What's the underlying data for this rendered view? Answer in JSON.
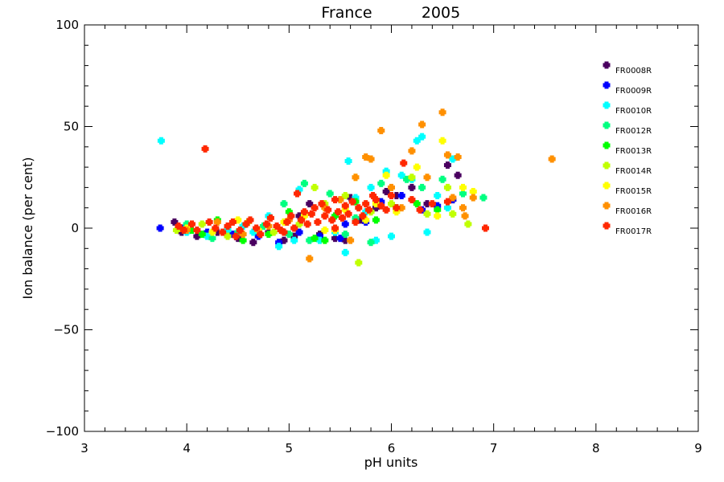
{
  "chart_data": {
    "type": "scatter",
    "title_left": "France",
    "title_right": "2005",
    "xlabel": "pH units",
    "ylabel": "Ion balance (per cent)",
    "xlim": [
      3,
      9
    ],
    "ylim": [
      -100,
      100
    ],
    "xticks": [
      3,
      4,
      5,
      6,
      7,
      8,
      9
    ],
    "yticks": [
      -100,
      -50,
      0,
      50,
      100
    ],
    "xtick_labels": [
      "3",
      "4",
      "5",
      "6",
      "7",
      "8",
      "9"
    ],
    "ytick_labels": [
      "−100",
      "−50",
      "0",
      "50",
      "100"
    ],
    "legend_placement": "top-right",
    "series": [
      {
        "name": "FR0008R",
        "color": "#4a0060",
        "points": [
          [
            3.88,
            3
          ],
          [
            3.95,
            -2
          ],
          [
            4.1,
            -4
          ],
          [
            4.3,
            -2
          ],
          [
            4.5,
            -5
          ],
          [
            4.65,
            -7
          ],
          [
            4.8,
            -2
          ],
          [
            4.95,
            -6
          ],
          [
            5.05,
            -4
          ],
          [
            5.2,
            12
          ],
          [
            5.3,
            -3
          ],
          [
            5.45,
            -5
          ],
          [
            5.55,
            -6
          ],
          [
            5.7,
            4
          ],
          [
            5.85,
            10
          ],
          [
            5.95,
            18
          ],
          [
            6.05,
            16
          ],
          [
            6.2,
            20
          ],
          [
            6.35,
            12
          ],
          [
            6.55,
            31
          ],
          [
            6.65,
            26
          ],
          [
            6.6,
            14
          ],
          [
            5.6,
            15
          ],
          [
            5.1,
            6
          ]
        ]
      },
      {
        "name": "FR0009R",
        "color": "#0000ff",
        "points": [
          [
            3.74,
            0
          ],
          [
            3.95,
            0
          ],
          [
            4.2,
            -2
          ],
          [
            4.45,
            -3
          ],
          [
            4.7,
            -4
          ],
          [
            4.9,
            -7
          ],
          [
            5.1,
            -2
          ],
          [
            5.3,
            -4
          ],
          [
            5.55,
            2
          ],
          [
            5.75,
            3
          ],
          [
            5.9,
            13
          ],
          [
            6.1,
            16
          ],
          [
            6.3,
            9
          ],
          [
            6.6,
            14
          ],
          [
            5.5,
            -5
          ],
          [
            6.45,
            11
          ]
        ]
      },
      {
        "name": "FR0010R",
        "color": "#00ffff",
        "points": [
          [
            3.75,
            43
          ],
          [
            4.0,
            -2
          ],
          [
            4.2,
            -4
          ],
          [
            4.4,
            -1
          ],
          [
            4.65,
            -2
          ],
          [
            4.8,
            6
          ],
          [
            4.9,
            -9
          ],
          [
            5.05,
            -6
          ],
          [
            5.1,
            19
          ],
          [
            5.3,
            -6
          ],
          [
            5.45,
            -2
          ],
          [
            5.58,
            33
          ],
          [
            5.55,
            -12
          ],
          [
            5.65,
            15
          ],
          [
            5.8,
            20
          ],
          [
            5.85,
            -6
          ],
          [
            5.95,
            28
          ],
          [
            6.0,
            -4
          ],
          [
            6.1,
            26
          ],
          [
            6.2,
            24
          ],
          [
            6.25,
            43
          ],
          [
            6.3,
            45
          ],
          [
            6.35,
            -2
          ],
          [
            6.45,
            16
          ],
          [
            6.55,
            10
          ],
          [
            6.6,
            34
          ],
          [
            4.55,
            1
          ],
          [
            5.75,
            8
          ]
        ]
      },
      {
        "name": "FR0012R",
        "color": "#00ff80",
        "points": [
          [
            4.0,
            2
          ],
          [
            4.25,
            -5
          ],
          [
            4.5,
            -2
          ],
          [
            4.75,
            1
          ],
          [
            4.95,
            12
          ],
          [
            5.15,
            22
          ],
          [
            5.2,
            -6
          ],
          [
            5.4,
            17
          ],
          [
            5.55,
            -3
          ],
          [
            5.8,
            -7
          ],
          [
            5.9,
            22
          ],
          [
            6.15,
            24
          ],
          [
            6.3,
            20
          ],
          [
            6.5,
            24
          ],
          [
            6.7,
            17
          ],
          [
            6.9,
            15
          ],
          [
            5.0,
            -3
          ],
          [
            5.65,
            5
          ]
        ]
      },
      {
        "name": "FR0013R",
        "color": "#00ff00",
        "points": [
          [
            4.05,
            -1
          ],
          [
            4.3,
            4
          ],
          [
            4.55,
            -6
          ],
          [
            4.8,
            -3
          ],
          [
            5.0,
            8
          ],
          [
            5.25,
            -5
          ],
          [
            5.45,
            6
          ],
          [
            5.65,
            13
          ],
          [
            5.85,
            4
          ],
          [
            6.05,
            10
          ],
          [
            6.25,
            12
          ],
          [
            6.45,
            9
          ],
          [
            4.15,
            -3
          ],
          [
            5.35,
            -6
          ]
        ]
      },
      {
        "name": "FR0014R",
        "color": "#c0ff00",
        "points": [
          [
            3.9,
            -1
          ],
          [
            4.15,
            2
          ],
          [
            4.4,
            -4
          ],
          [
            4.6,
            3
          ],
          [
            4.85,
            -2
          ],
          [
            5.1,
            2
          ],
          [
            5.35,
            12
          ],
          [
            5.55,
            16
          ],
          [
            5.68,
            -17
          ],
          [
            5.8,
            8
          ],
          [
            6.0,
            12
          ],
          [
            6.2,
            25
          ],
          [
            6.35,
            7
          ],
          [
            6.55,
            20
          ],
          [
            6.75,
            2
          ],
          [
            6.6,
            7
          ],
          [
            5.25,
            20
          ]
        ]
      },
      {
        "name": "FR0015R",
        "color": "#ffff00",
        "points": [
          [
            4.0,
            0
          ],
          [
            4.25,
            -2
          ],
          [
            4.5,
            4
          ],
          [
            4.7,
            -1
          ],
          [
            4.95,
            3
          ],
          [
            5.15,
            6
          ],
          [
            5.35,
            -1
          ],
          [
            5.55,
            9
          ],
          [
            5.65,
            25
          ],
          [
            5.75,
            4
          ],
          [
            5.95,
            26
          ],
          [
            6.05,
            8
          ],
          [
            6.25,
            30
          ],
          [
            6.45,
            6
          ],
          [
            6.5,
            43
          ],
          [
            6.7,
            20
          ],
          [
            6.8,
            18
          ],
          [
            5.85,
            12
          ],
          [
            5.45,
            -1
          ]
        ]
      },
      {
        "name": "FR0016R",
        "color": "#ff9000",
        "points": [
          [
            4.0,
            -1
          ],
          [
            4.3,
            3
          ],
          [
            4.55,
            -3
          ],
          [
            4.8,
            1
          ],
          [
            5.0,
            4
          ],
          [
            5.2,
            -15
          ],
          [
            5.35,
            10
          ],
          [
            5.5,
            14
          ],
          [
            5.6,
            -6
          ],
          [
            5.75,
            35
          ],
          [
            5.8,
            34
          ],
          [
            5.9,
            48
          ],
          [
            6.0,
            20
          ],
          [
            6.1,
            10
          ],
          [
            6.2,
            38
          ],
          [
            6.3,
            51
          ],
          [
            6.35,
            25
          ],
          [
            6.5,
            57
          ],
          [
            6.55,
            36
          ],
          [
            6.65,
            35
          ],
          [
            6.7,
            10
          ],
          [
            6.72,
            6
          ],
          [
            6.8,
            15
          ],
          [
            7.57,
            34
          ],
          [
            6.6,
            15
          ],
          [
            5.65,
            25
          ]
        ]
      },
      {
        "name": "FR0017R",
        "color": "#ff2800",
        "points": [
          [
            3.92,
            1
          ],
          [
            3.97,
            -1
          ],
          [
            4.05,
            2
          ],
          [
            4.1,
            -1
          ],
          [
            4.18,
            39
          ],
          [
            4.22,
            3
          ],
          [
            4.28,
            0
          ],
          [
            4.35,
            -2
          ],
          [
            4.4,
            1
          ],
          [
            4.45,
            3
          ],
          [
            4.52,
            -1
          ],
          [
            4.58,
            2
          ],
          [
            4.62,
            4
          ],
          [
            4.68,
            0
          ],
          [
            4.72,
            -3
          ],
          [
            4.78,
            2
          ],
          [
            4.82,
            5
          ],
          [
            4.88,
            1
          ],
          [
            4.92,
            -1
          ],
          [
            4.98,
            3
          ],
          [
            5.02,
            6
          ],
          [
            5.05,
            0
          ],
          [
            5.08,
            17
          ],
          [
            5.12,
            4
          ],
          [
            5.15,
            8
          ],
          [
            5.18,
            2
          ],
          [
            5.22,
            7
          ],
          [
            5.25,
            10
          ],
          [
            5.28,
            3
          ],
          [
            5.32,
            12
          ],
          [
            5.35,
            6
          ],
          [
            5.38,
            9
          ],
          [
            5.42,
            4
          ],
          [
            5.45,
            14
          ],
          [
            5.48,
            8
          ],
          [
            5.52,
            5
          ],
          [
            5.55,
            11
          ],
          [
            5.58,
            7
          ],
          [
            5.62,
            13
          ],
          [
            5.65,
            3
          ],
          [
            5.68,
            10
          ],
          [
            5.72,
            6
          ],
          [
            5.75,
            12
          ],
          [
            5.78,
            9
          ],
          [
            5.82,
            16
          ],
          [
            5.85,
            14
          ],
          [
            5.9,
            11
          ],
          [
            5.95,
            9
          ],
          [
            6.0,
            16
          ],
          [
            6.05,
            10
          ],
          [
            6.12,
            32
          ],
          [
            6.2,
            14
          ],
          [
            6.28,
            9
          ],
          [
            6.4,
            12
          ],
          [
            6.55,
            13
          ],
          [
            6.92,
            0
          ],
          [
            4.48,
            -4
          ],
          [
            4.95,
            -2
          ],
          [
            5.45,
            0
          ]
        ]
      }
    ]
  }
}
